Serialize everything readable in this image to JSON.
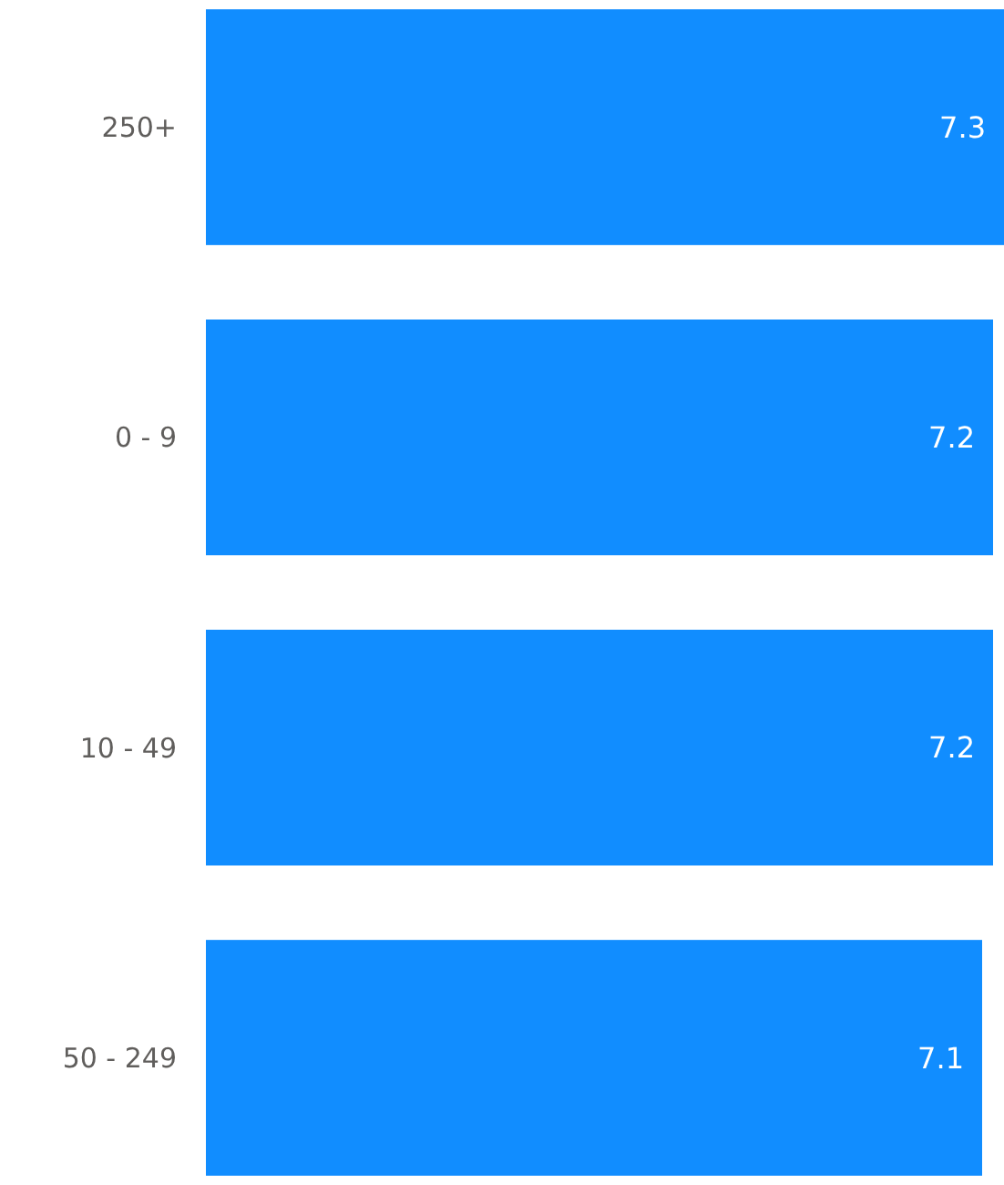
{
  "chart_data": {
    "type": "bar",
    "orientation": "horizontal",
    "categories": [
      "250+",
      "0 - 9",
      "10 - 49",
      "50 - 249"
    ],
    "values": [
      7.3,
      7.2,
      7.2,
      7.1
    ],
    "color": "#118dff",
    "data_labels": true
  }
}
